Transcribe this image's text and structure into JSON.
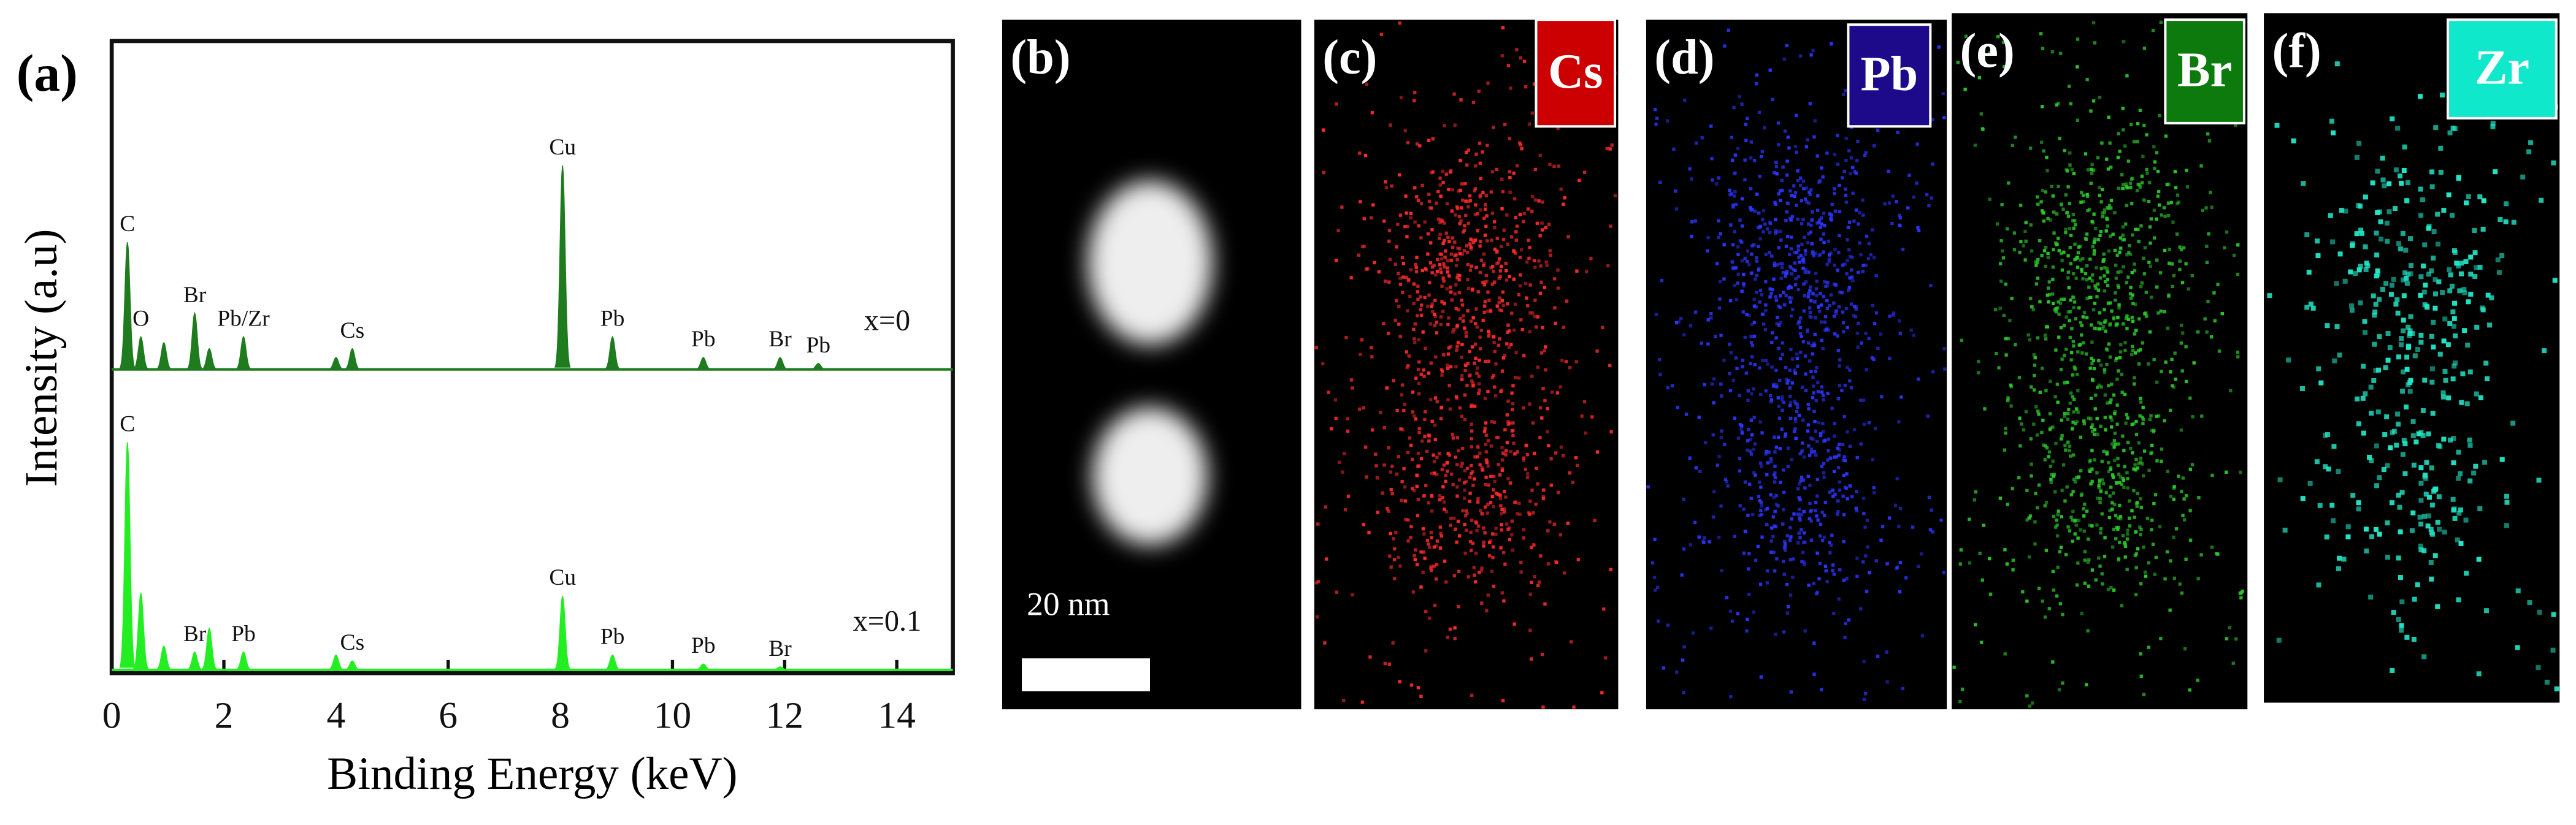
{
  "chart_data": {
    "type": "line",
    "panel_label": "(a)",
    "xlabel": "Binding Energy (keV)",
    "ylabel": "Intensity (a.u)",
    "xlim": [
      0,
      15
    ],
    "xticks": [
      0,
      2,
      4,
      6,
      8,
      10,
      12,
      14
    ],
    "ylim": [
      0,
      100
    ],
    "series": [
      {
        "name": "x=0",
        "color": "#1e7b1e",
        "x": [
          0.28,
          0.52,
          0.93,
          1.48,
          1.74,
          2.35,
          4.0,
          4.29,
          8.04,
          8.93,
          10.55,
          11.92,
          12.6
        ],
        "values": [
          43,
          11,
          9,
          19,
          7,
          11,
          4,
          7,
          69,
          11,
          4,
          4,
          2
        ],
        "labels": [
          "C",
          "O",
          null,
          "Br",
          null,
          "Pb/Zr",
          null,
          "Cs",
          "Cu",
          "Pb",
          "Pb",
          "Br",
          "Pb"
        ]
      },
      {
        "name": "x=0.1",
        "color": "#22ee22",
        "x": [
          0.28,
          0.52,
          0.93,
          1.48,
          1.74,
          2.35,
          4.0,
          4.29,
          8.04,
          8.93,
          10.55,
          11.92
        ],
        "values": [
          77,
          26,
          8,
          6,
          14,
          6,
          5,
          3,
          25,
          5,
          2,
          1
        ],
        "labels": [
          "C",
          null,
          null,
          "Br",
          null,
          "Pb",
          null,
          "Cs",
          "Cu",
          "Pb",
          "Pb",
          "Br"
        ]
      }
    ]
  },
  "maps": [
    {
      "label": "(b)",
      "scale_bar": "20 nm"
    },
    {
      "label": "(c)",
      "element": "Cs",
      "color": "#cc0000",
      "dot_color": "#ff2a2a"
    },
    {
      "label": "(d)",
      "element": "Pb",
      "color": "#1c0a8a",
      "dot_color": "#2a35ff"
    },
    {
      "label": "(e)",
      "element": "Br",
      "color": "#0c7a0c",
      "dot_color": "#2ac82a"
    },
    {
      "label": "(f)",
      "element": "Zr",
      "color": "#10e8cc",
      "dot_color": "#22e8c8"
    }
  ]
}
